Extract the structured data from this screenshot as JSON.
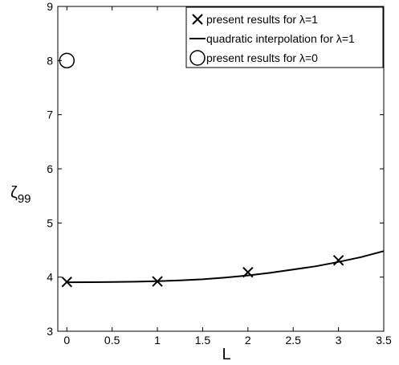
{
  "chart_data": {
    "type": "line",
    "title": "",
    "xlabel": "L",
    "ylabel": "ζ",
    "ylabel_sub": "99",
    "xlim": [
      -0.1,
      3.5
    ],
    "ylim": [
      3,
      9
    ],
    "xticks": [
      "0",
      "0.5",
      "1",
      "1.5",
      "2",
      "2.5",
      "3",
      "3.5"
    ],
    "yticks": [
      "3",
      "4",
      "5",
      "6",
      "7",
      "8",
      "9"
    ],
    "grid": false,
    "legend_position": "top-right",
    "series": [
      {
        "name": "present results for λ=1",
        "kind": "scatter",
        "marker": "x",
        "x": [
          0,
          1,
          2,
          3
        ],
        "y": [
          3.91,
          3.92,
          4.09,
          4.31
        ]
      },
      {
        "name": "quadratic interpolation for λ=1",
        "kind": "line",
        "x": [
          0,
          0.25,
          0.5,
          0.75,
          1,
          1.25,
          1.5,
          1.75,
          2,
          2.25,
          2.5,
          2.75,
          3,
          3.25,
          3.5
        ],
        "y": [
          3.905,
          3.906,
          3.909,
          3.915,
          3.925,
          3.94,
          3.96,
          3.99,
          4.03,
          4.08,
          4.14,
          4.2,
          4.28,
          4.37,
          4.48
        ]
      },
      {
        "name": "present results for λ=0",
        "kind": "scatter",
        "marker": "circle",
        "x": [
          0
        ],
        "y": [
          8
        ]
      }
    ]
  }
}
